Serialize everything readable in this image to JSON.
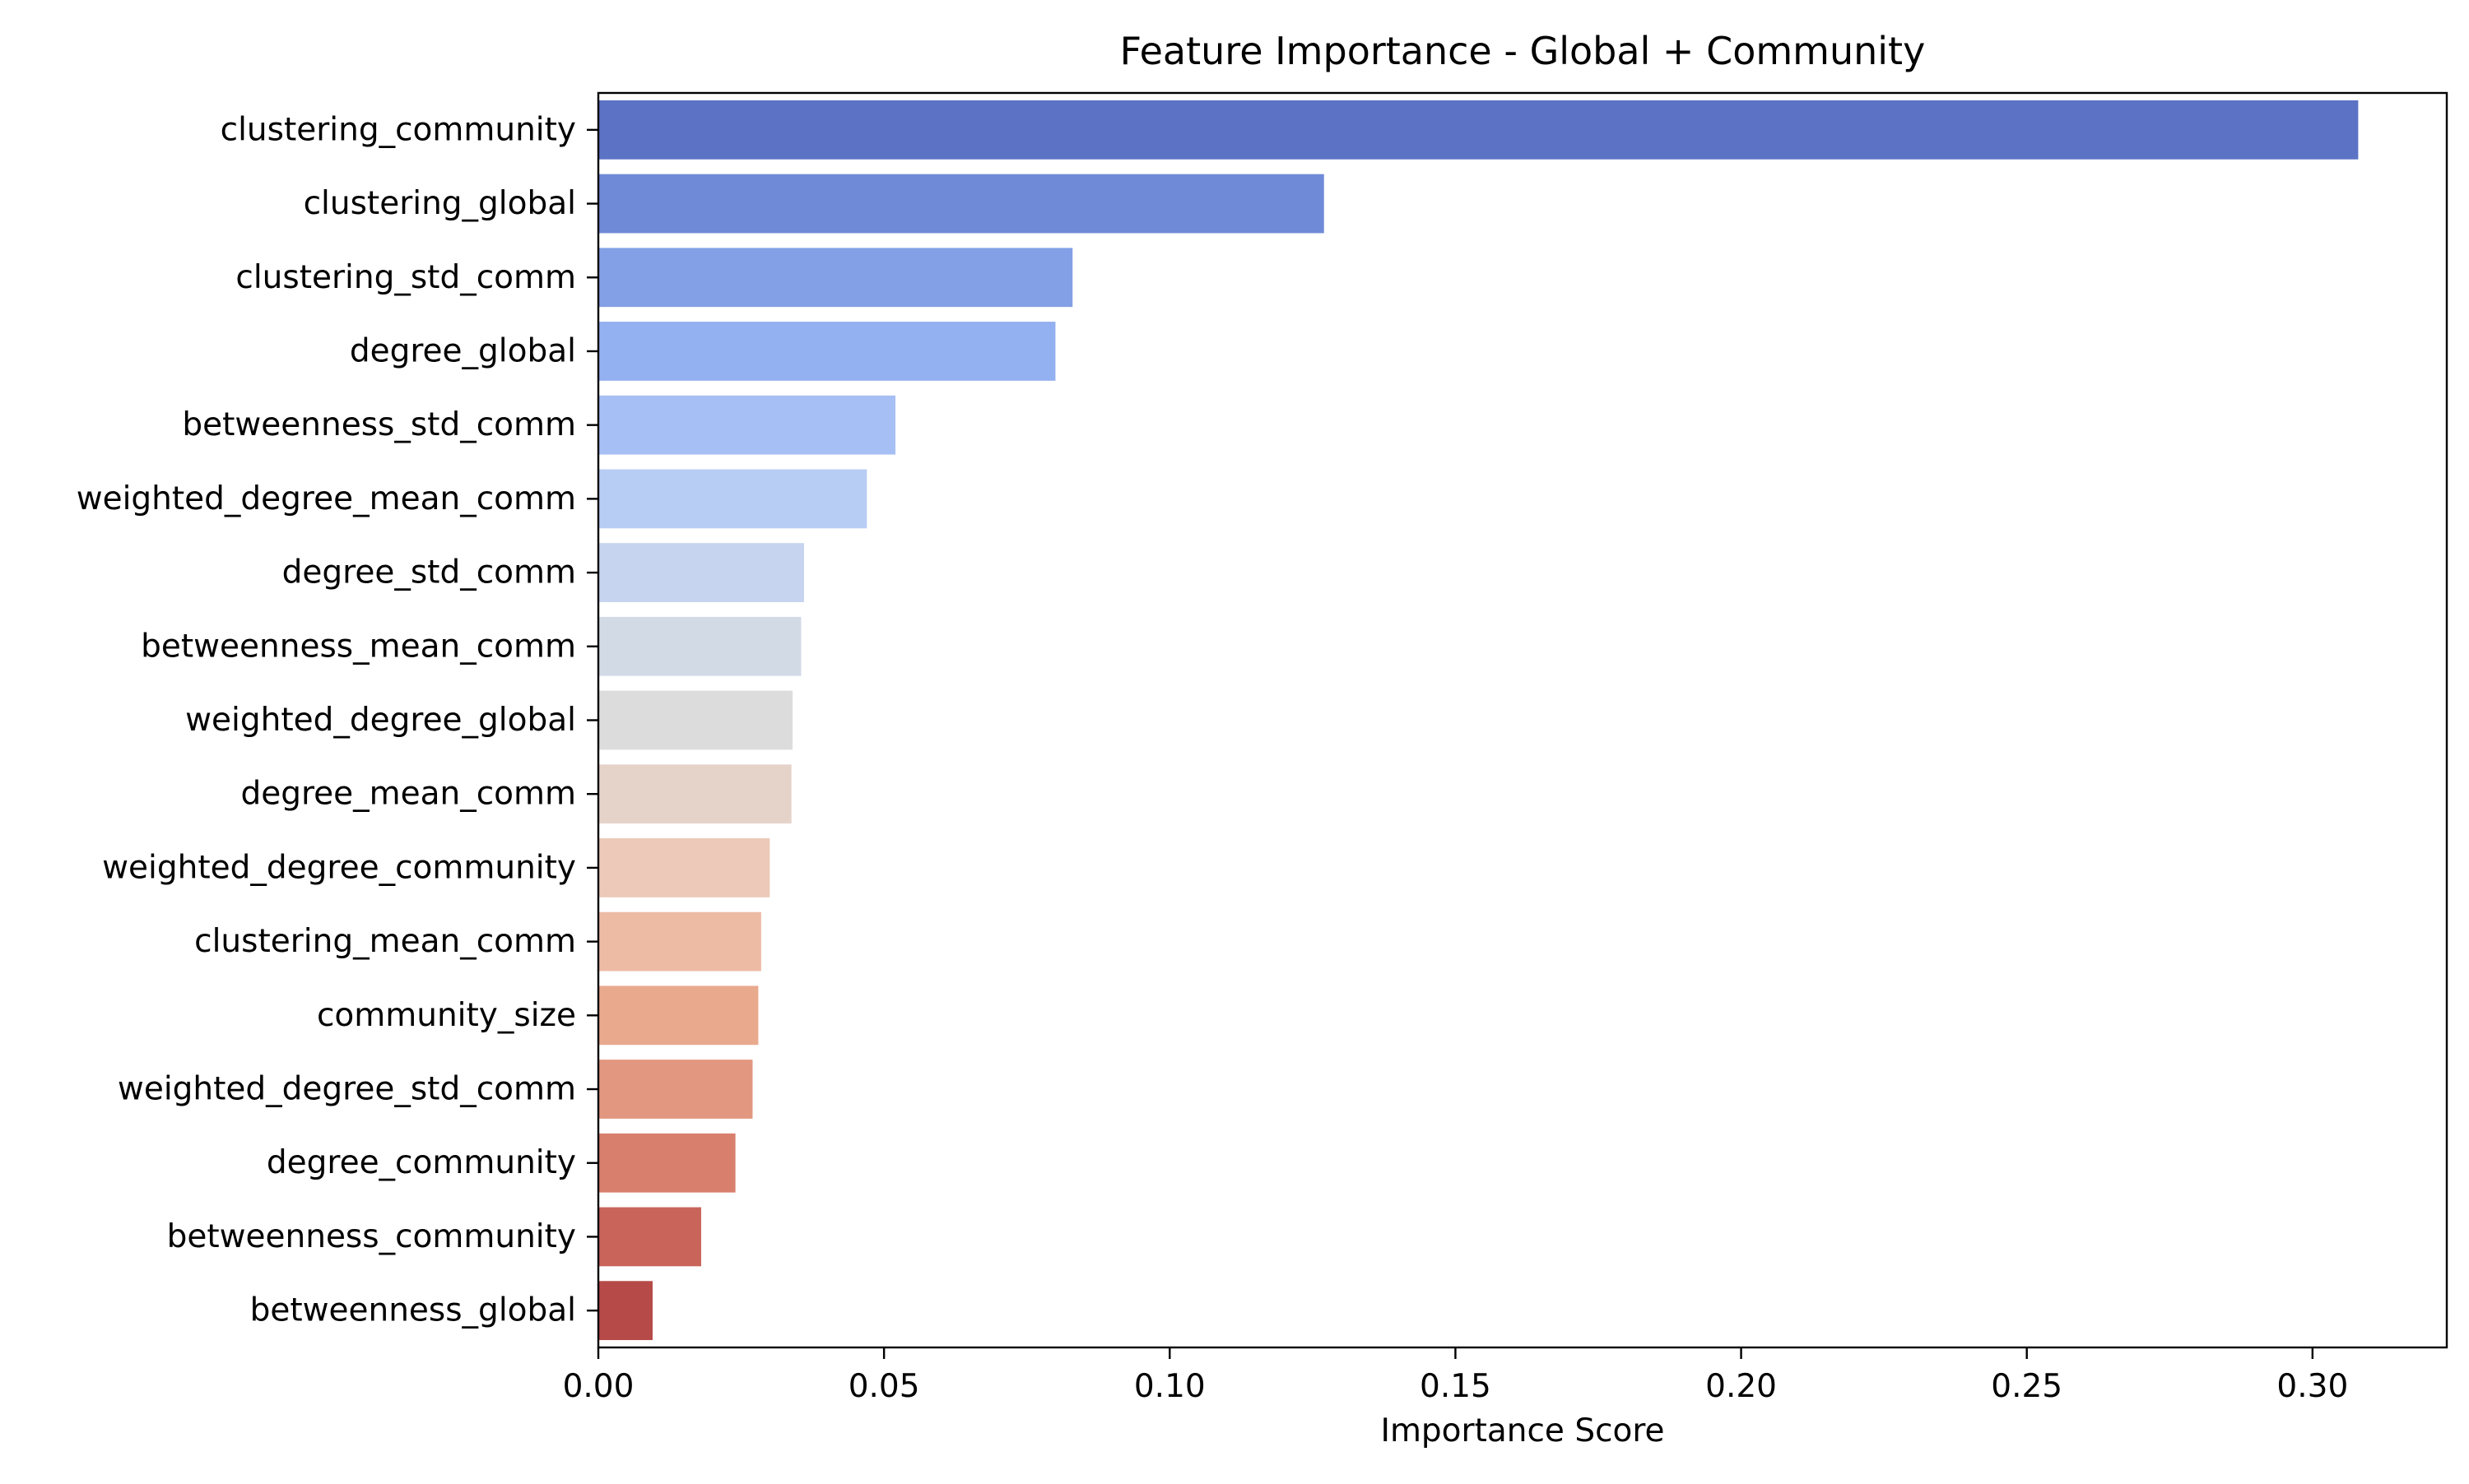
{
  "chart_data": {
    "type": "bar",
    "orientation": "horizontal",
    "title": "Feature Importance - Global + Community",
    "xlabel": "Importance Score",
    "ylabel": "",
    "xlim": [
      0,
      0.3235
    ],
    "xticks": [
      "0.00",
      "0.05",
      "0.10",
      "0.15",
      "0.20",
      "0.25",
      "0.30"
    ],
    "grid": false,
    "legend": "none",
    "palette": "coolwarm",
    "categories": [
      "clustering_community",
      "clustering_global",
      "clustering_std_comm",
      "degree_global",
      "betweenness_std_comm",
      "weighted_degree_mean_comm",
      "degree_std_comm",
      "betweenness_mean_comm",
      "weighted_degree_global",
      "degree_mean_comm",
      "weighted_degree_community",
      "clustering_mean_comm",
      "community_size",
      "weighted_degree_std_comm",
      "degree_community",
      "betweenness_community",
      "betweenness_global"
    ],
    "values": [
      0.308,
      0.127,
      0.083,
      0.08,
      0.052,
      0.047,
      0.036,
      0.0355,
      0.034,
      0.0338,
      0.03,
      0.0285,
      0.028,
      0.027,
      0.024,
      0.018,
      0.0095
    ],
    "colors": [
      "#5c72c5",
      "#6f8ad7",
      "#839fe6",
      "#93b0f0",
      "#a6bff4",
      "#b8cdf4",
      "#c7d4ef",
      "#d2dae6",
      "#dcdcdc",
      "#e5d3ca",
      "#ecc9b8",
      "#edbba4",
      "#e9a98d",
      "#e29780",
      "#d8806d",
      "#c9645a",
      "#b64a48"
    ]
  }
}
